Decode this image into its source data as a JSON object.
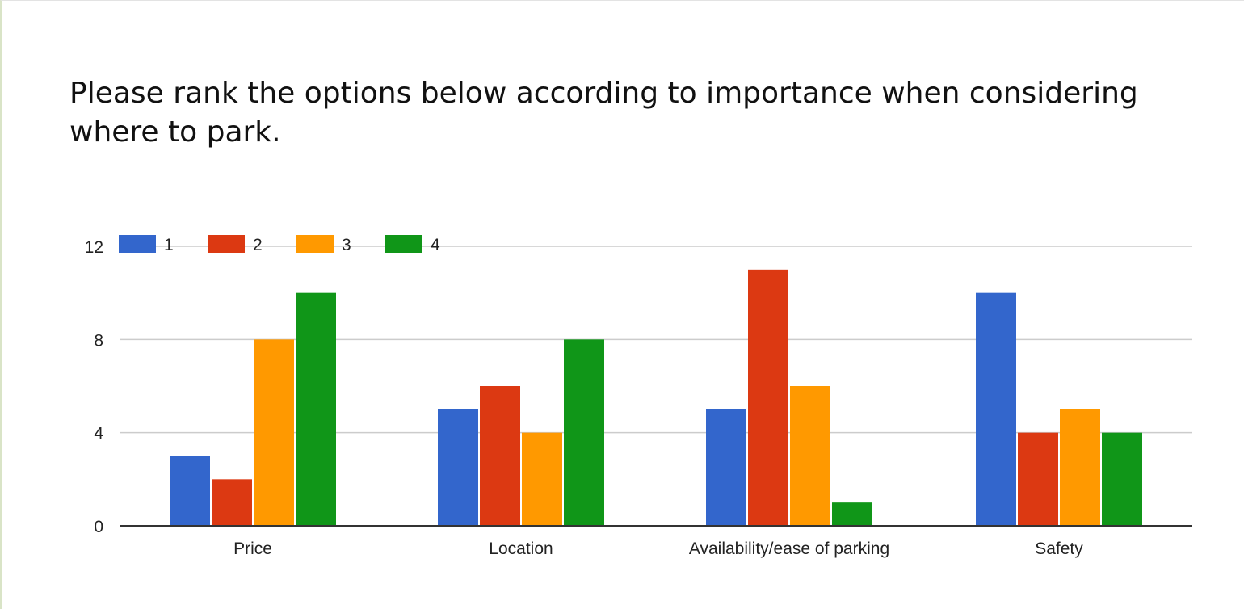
{
  "title": "Please rank the options below according to importance when considering where to park.",
  "colors": {
    "series_1": "#3366cc",
    "series_2": "#dc3912",
    "series_3": "#ff9900",
    "series_4": "#109618",
    "grid": "#cccccc",
    "axis": "#333333"
  },
  "chart_data": {
    "type": "bar",
    "title": "Please rank the options below according to importance when considering where to park.",
    "categories": [
      "Price",
      "Location",
      "Availability/ease of parking",
      "Safety"
    ],
    "series": [
      {
        "name": "1",
        "color": "#3366cc",
        "values": [
          3,
          5,
          5,
          10
        ]
      },
      {
        "name": "2",
        "color": "#dc3912",
        "values": [
          2,
          6,
          11,
          4
        ]
      },
      {
        "name": "3",
        "color": "#ff9900",
        "values": [
          8,
          4,
          6,
          5
        ]
      },
      {
        "name": "4",
        "color": "#109618",
        "values": [
          10,
          8,
          1,
          4
        ]
      }
    ],
    "yticks": [
      0,
      4,
      8,
      12
    ],
    "ylim": [
      0,
      12
    ],
    "xlabel": "",
    "ylabel": "",
    "grid": true,
    "legend": "top-left"
  }
}
